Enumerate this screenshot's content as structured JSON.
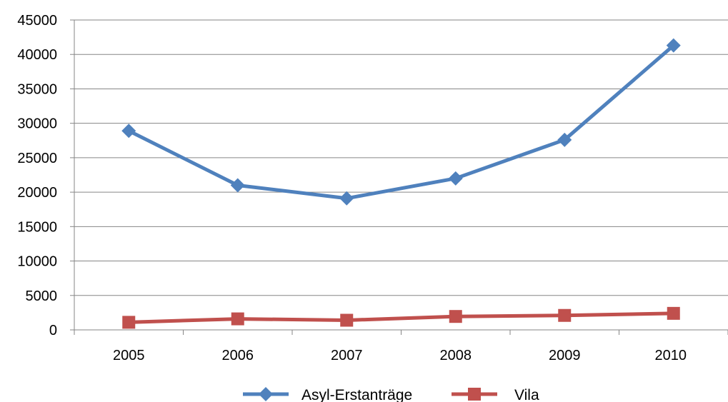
{
  "chart_data": {
    "type": "line",
    "title": "",
    "xlabel": "",
    "ylabel": "",
    "categories": [
      "2005",
      "2006",
      "2007",
      "2008",
      "2009",
      "2010"
    ],
    "ylim": [
      0,
      45000
    ],
    "yticks": [
      0,
      5000,
      10000,
      15000,
      20000,
      25000,
      30000,
      35000,
      40000,
      45000
    ],
    "grid": true,
    "legend_position": "bottom",
    "series": [
      {
        "name": "Asyl-Erstanträge",
        "color": "#4F81BD",
        "marker": "diamond",
        "values": [
          28900,
          21000,
          19100,
          22000,
          27600,
          41300
        ]
      },
      {
        "name": "Vila",
        "color": "#C0504D",
        "marker": "square",
        "values": [
          1100,
          1600,
          1400,
          1950,
          2100,
          2400
        ]
      }
    ]
  }
}
